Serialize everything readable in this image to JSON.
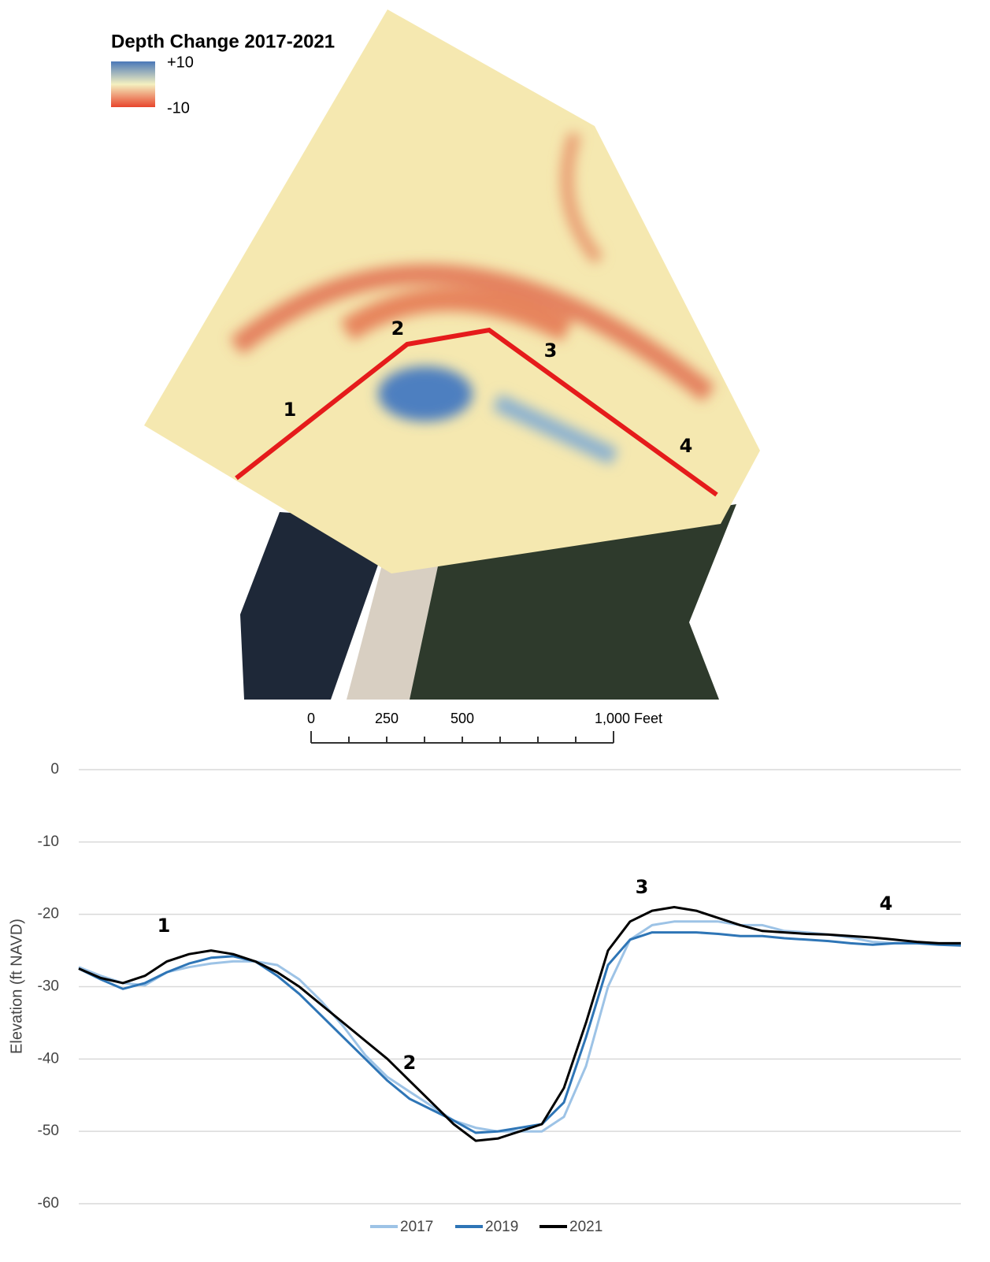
{
  "map": {
    "title": "Depth Change 2017-2021",
    "legend_labels": [
      "+10",
      "-10"
    ],
    "profile_labels": [
      "1",
      "2",
      "3",
      "4"
    ],
    "scale_labels": [
      "0",
      "250",
      "500",
      "1,000 Feet"
    ]
  },
  "chart_data": {
    "type": "line",
    "ylabel": "Elevation (ft NAVD)",
    "ylim": [
      -60,
      0
    ],
    "yticks": [
      0,
      -10,
      -20,
      -30,
      -40,
      -50,
      -60
    ],
    "grid": true,
    "annotations": [
      "1",
      "2",
      "3",
      "4"
    ],
    "series": [
      {
        "name": "2017",
        "color": "#9dc3e6",
        "values": [
          -27.3,
          -28.5,
          -29.5,
          -29.8,
          -28,
          -27.3,
          -26.8,
          -26.5,
          -26.5,
          -27,
          -29,
          -32,
          -35.5,
          -39.5,
          -42.5,
          -44.5,
          -46.5,
          -48.5,
          -49.5,
          -50,
          -50,
          -50,
          -48,
          -41,
          -30,
          -23.5,
          -21.5,
          -21,
          -21,
          -21,
          -21.5,
          -21.5,
          -22.3,
          -22.5,
          -22.8,
          -23.2,
          -23.8,
          -24,
          -24,
          -24,
          -24
        ]
      },
      {
        "name": "2019",
        "color": "#2e75b6",
        "values": [
          -27.5,
          -29,
          -30.3,
          -29.5,
          -28,
          -26.8,
          -26,
          -25.8,
          -26.5,
          -28.5,
          -31,
          -34,
          -37,
          -40,
          -43,
          -45.5,
          -47,
          -48.5,
          -50.2,
          -50,
          -49.5,
          -49,
          -46,
          -37,
          -27,
          -23.5,
          -22.5,
          -22.5,
          -22.5,
          -22.7,
          -23,
          -23,
          -23.3,
          -23.5,
          -23.7,
          -24,
          -24.2,
          -24,
          -24,
          -24.2,
          -24.3
        ]
      },
      {
        "name": "2021",
        "color": "#000000",
        "values": [
          -27.5,
          -28.8,
          -29.5,
          -28.5,
          -26.5,
          -25.5,
          -25,
          -25.5,
          -26.5,
          -28,
          -30,
          -32.5,
          -35,
          -37.5,
          -40,
          -43,
          -46,
          -49,
          -51.3,
          -51,
          -50,
          -49,
          -44,
          -35,
          -25,
          -21,
          -19.5,
          -19,
          -19.5,
          -20.5,
          -21.5,
          -22.3,
          -22.5,
          -22.7,
          -22.8,
          -23,
          -23.2,
          -23.5,
          -23.8,
          -24,
          -24
        ]
      }
    ]
  }
}
